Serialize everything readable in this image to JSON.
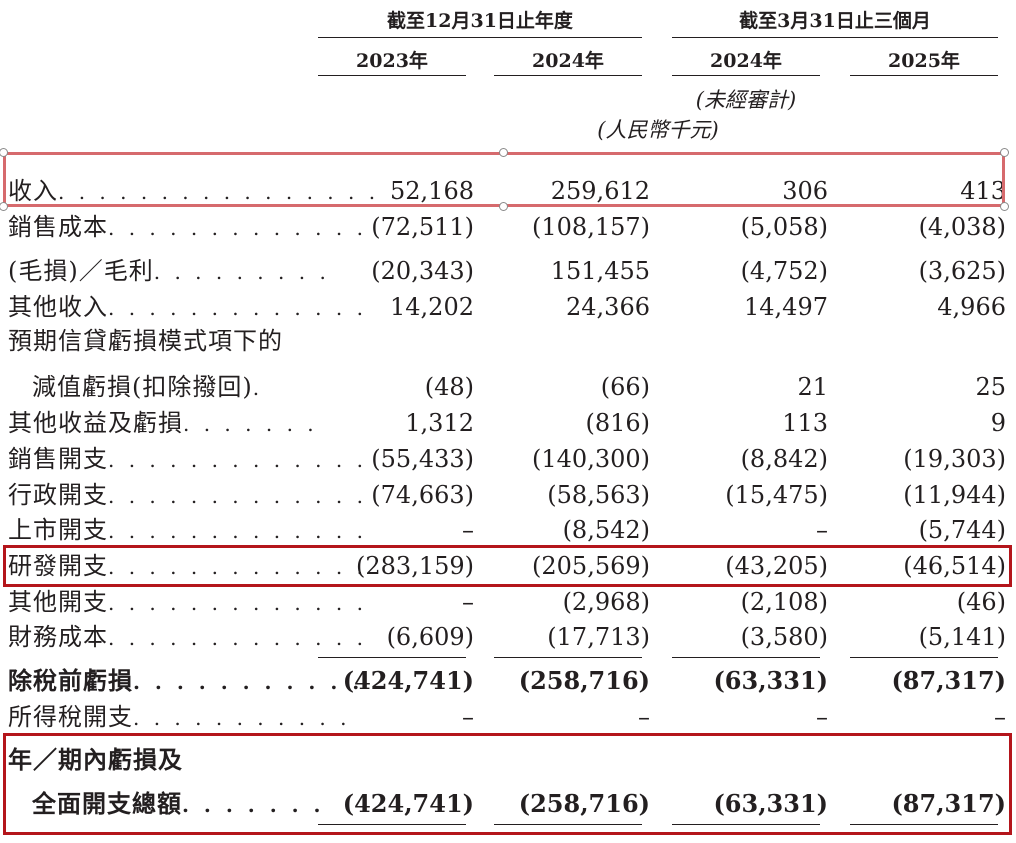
{
  "header": {
    "group_year": "截至12月31日止年度",
    "group_quarter": "截至3月31日止三個月",
    "col1": "2023年",
    "col2": "2024年",
    "col3": "2024年",
    "col4": "2025年",
    "unaudited": "(未經審計)",
    "currency": "(人民幣千元)"
  },
  "rows": [
    {
      "label": "收入",
      "dots": ". . . . . . . . . . . . . . . .",
      "v": [
        "52,168",
        "259,612",
        "306",
        "413"
      ]
    },
    {
      "label": "銷售成本",
      "dots": ". . . . . . . . . . . . .",
      "v": [
        "(72,511)",
        "(108,157)",
        "(5,058)",
        "(4,038)"
      ]
    },
    {
      "label": "(毛損)／毛利",
      "dots": ". . . . . . . . .",
      "v": [
        "(20,343)",
        "151,455",
        "(4,752)",
        "(3,625)"
      ]
    },
    {
      "label": "其他收入",
      "dots": ". . . . . . . . . . . . .",
      "v": [
        "14,202",
        "24,366",
        "14,497",
        "4,966"
      ]
    },
    {
      "label": "預期信貸虧損模式項下的",
      "dots": "",
      "v": [
        "",
        "",
        "",
        ""
      ]
    },
    {
      "label": "減值虧損(扣除撥回)",
      "dots": ".",
      "v": [
        "(48)",
        "(66)",
        "21",
        "25"
      ]
    },
    {
      "label": "其他收益及虧損",
      "dots": ". . . . . . .",
      "v": [
        "1,312",
        "(816)",
        "113",
        "9"
      ]
    },
    {
      "label": "銷售開支",
      "dots": ". . . . . . . . . . . . .",
      "v": [
        "(55,433)",
        "(140,300)",
        "(8,842)",
        "(19,303)"
      ]
    },
    {
      "label": "行政開支",
      "dots": ". . . . . . . . . . . . .",
      "v": [
        "(74,663)",
        "(58,563)",
        "(15,475)",
        "(11,944)"
      ]
    },
    {
      "label": "上市開支",
      "dots": ". . . . . . . . . . . . .",
      "v": [
        "–",
        "(8,542)",
        "–",
        "(5,744)"
      ]
    },
    {
      "label": "研發開支",
      "dots": ". . . . . . . . . . . . .",
      "v": [
        "(283,159)",
        "(205,569)",
        "(43,205)",
        "(46,514)"
      ]
    },
    {
      "label": "其他開支",
      "dots": ". . . . . . . . . . . . .",
      "v": [
        "–",
        "(2,968)",
        "(2,108)",
        "(46)"
      ]
    },
    {
      "label": "財務成本",
      "dots": ". . . . . . . . . . . . .",
      "v": [
        "(6,609)",
        "(17,713)",
        "(3,580)",
        "(5,141)"
      ]
    },
    {
      "label": "除稅前虧損",
      "dots": ". . . . . . . . . . .",
      "v": [
        "(424,741)",
        "(258,716)",
        "(63,331)",
        "(87,317)"
      ]
    },
    {
      "label": "所得稅開支",
      "dots": ". . . . . . . . . . .",
      "v": [
        "–",
        "–",
        "–",
        "–"
      ]
    },
    {
      "label": "年／期內虧損及",
      "dots": "",
      "v": [
        "",
        "",
        "",
        ""
      ]
    },
    {
      "label": "全面開支總額",
      "dots": ". . . . . . .",
      "v": [
        "(424,741)",
        "(258,716)",
        "(63,331)",
        "(87,317)"
      ]
    }
  ],
  "colors": {
    "highlight_box": "#b4151b",
    "selection_box": "#d66a6d",
    "text": "#231f20"
  }
}
